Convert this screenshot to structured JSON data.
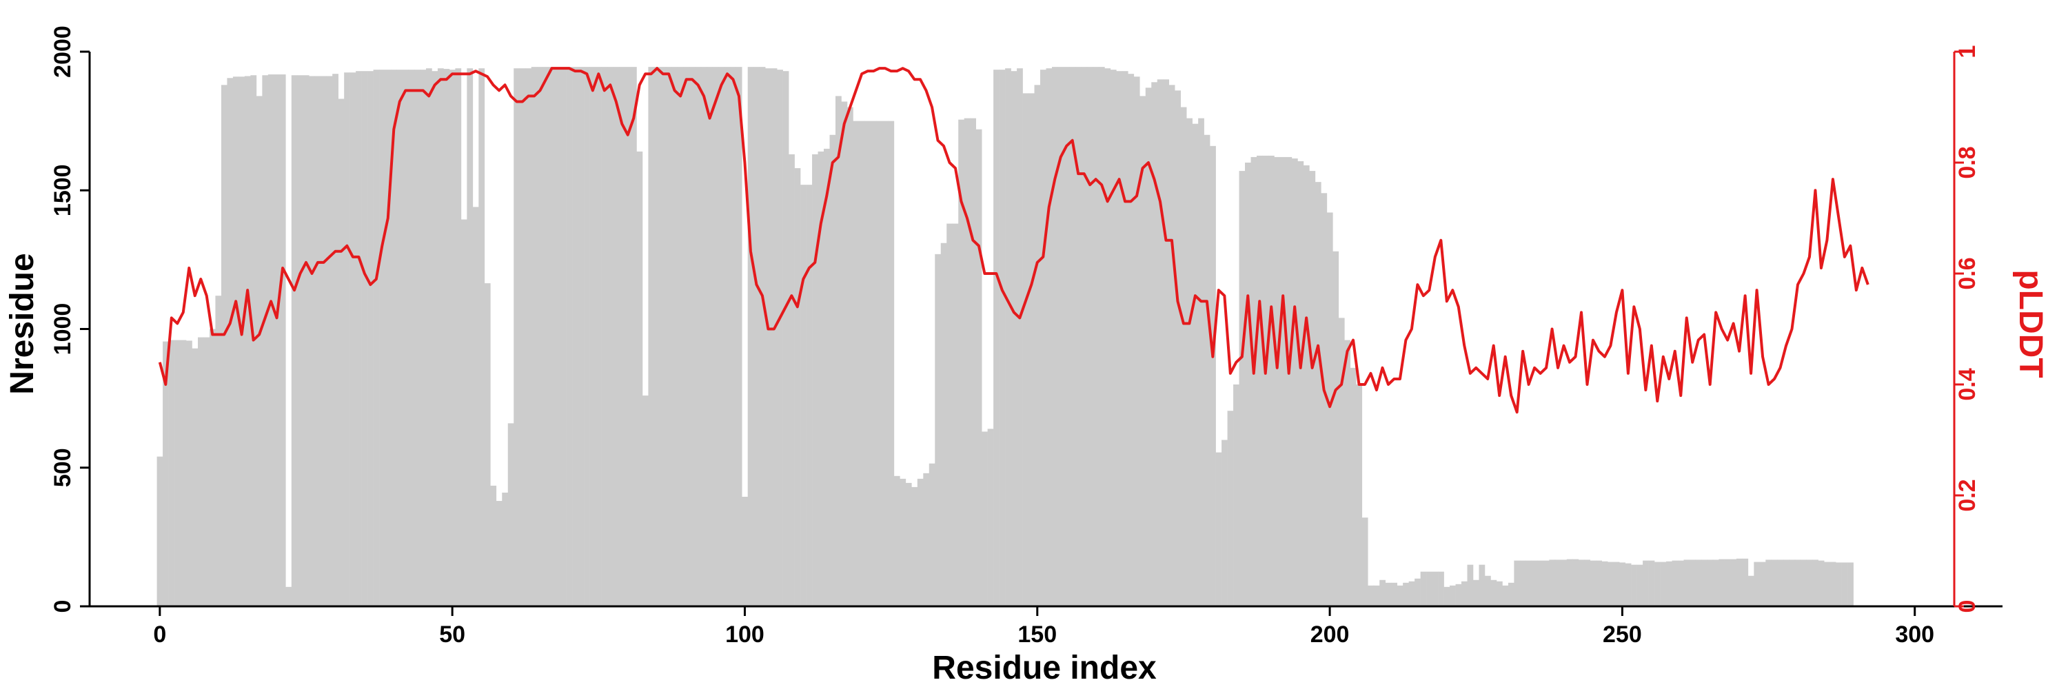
{
  "chart_data": {
    "type": "bar",
    "xlabel": "Residue index",
    "ylabel": "Nresidue",
    "y2label": "pLDDT",
    "xlim": [
      -12,
      315
    ],
    "ylim": [
      0,
      2000
    ],
    "y2lim": [
      0,
      1
    ],
    "xticks": [
      0,
      50,
      100,
      150,
      200,
      250,
      300
    ],
    "yticks": [
      0,
      500,
      1000,
      1500,
      2000
    ],
    "y2ticks": [
      0,
      0.2,
      0.4,
      0.6,
      0.8,
      1
    ],
    "grid": false,
    "colors": {
      "bars": "#cccccc",
      "line": "#e41a1c",
      "axis": "#000000"
    },
    "series": [
      {
        "kind": "bar",
        "axis": "left",
        "x_start": 0,
        "values": [
          540,
          955,
          960,
          960,
          960,
          958,
          930,
          970,
          970,
          1000,
          1120,
          1880,
          1905,
          1910,
          1910,
          1912,
          1915,
          1840,
          1915,
          1918,
          1918,
          1918,
          70,
          1915,
          1915,
          1915,
          1912,
          1912,
          1912,
          1912,
          1920,
          1830,
          1925,
          1925,
          1930,
          1930,
          1930,
          1935,
          1935,
          1935,
          1935,
          1935,
          1935,
          1935,
          1935,
          1935,
          1940,
          1930,
          1940,
          1938,
          1935,
          1940,
          1395,
          1940,
          1440,
          1940,
          1165,
          435,
          380,
          410,
          660,
          1940,
          1940,
          1940,
          1945,
          1945,
          1945,
          1945,
          1945,
          1945,
          1945,
          1945,
          1945,
          1945,
          1945,
          1945,
          1945,
          1945,
          1945,
          1945,
          1945,
          1945,
          1640,
          760,
          1945,
          1945,
          1945,
          1945,
          1945,
          1945,
          1945,
          1945,
          1945,
          1945,
          1945,
          1945,
          1945,
          1945,
          1945,
          1945,
          395,
          1945,
          1945,
          1945,
          1940,
          1940,
          1935,
          1930,
          1630,
          1580,
          1520,
          1520,
          1630,
          1640,
          1650,
          1700,
          1840,
          1820,
          1800,
          1750,
          1750,
          1750,
          1750,
          1750,
          1750,
          1750,
          470,
          460,
          445,
          430,
          460,
          480,
          515,
          1270,
          1310,
          1380,
          1380,
          1755,
          1760,
          1760,
          1720,
          630,
          640,
          1935,
          1935,
          1940,
          1930,
          1940,
          1850,
          1850,
          1880,
          1935,
          1940,
          1945,
          1945,
          1945,
          1945,
          1945,
          1945,
          1945,
          1945,
          1945,
          1940,
          1935,
          1930,
          1930,
          1920,
          1910,
          1840,
          1870,
          1890,
          1900,
          1900,
          1880,
          1860,
          1800,
          1760,
          1740,
          1760,
          1700,
          1660,
          555,
          600,
          705,
          800,
          1570,
          1600,
          1620,
          1625,
          1625,
          1625,
          1620,
          1620,
          1620,
          1615,
          1605,
          1590,
          1570,
          1530,
          1490,
          1420,
          1280,
          1040,
          960,
          860,
          800,
          320,
          75,
          75,
          95,
          85,
          85,
          75,
          85,
          90,
          100,
          125,
          125,
          125,
          125,
          70,
          75,
          80,
          90,
          150,
          95,
          150,
          110,
          95,
          90,
          75,
          85,
          165,
          165,
          165,
          165,
          165,
          165,
          168,
          168,
          168,
          170,
          170,
          168,
          168,
          165,
          165,
          162,
          160,
          160,
          158,
          155,
          150,
          150,
          165,
          165,
          160,
          160,
          162,
          165,
          165,
          168,
          168,
          168,
          168,
          168,
          168,
          170,
          170,
          170,
          172,
          172,
          110,
          160,
          160,
          168,
          168,
          168,
          168,
          168,
          168,
          168,
          168,
          168,
          165,
          160,
          160,
          158,
          158,
          158
        ]
      },
      {
        "kind": "line",
        "axis": "right",
        "x_start": 0,
        "values": [
          0.44,
          0.4,
          0.52,
          0.51,
          0.53,
          0.61,
          0.56,
          0.59,
          0.56,
          0.49,
          0.49,
          0.49,
          0.51,
          0.55,
          0.49,
          0.57,
          0.48,
          0.49,
          0.52,
          0.55,
          0.52,
          0.61,
          0.59,
          0.57,
          0.6,
          0.62,
          0.6,
          0.62,
          0.62,
          0.63,
          0.64,
          0.64,
          0.65,
          0.63,
          0.63,
          0.6,
          0.58,
          0.59,
          0.65,
          0.7,
          0.86,
          0.91,
          0.93,
          0.93,
          0.93,
          0.93,
          0.92,
          0.94,
          0.95,
          0.95,
          0.96,
          0.96,
          0.96,
          0.96,
          0.965,
          0.96,
          0.955,
          0.94,
          0.93,
          0.94,
          0.92,
          0.91,
          0.91,
          0.92,
          0.92,
          0.93,
          0.95,
          0.97,
          0.97,
          0.97,
          0.97,
          0.965,
          0.965,
          0.96,
          0.93,
          0.96,
          0.93,
          0.94,
          0.91,
          0.87,
          0.85,
          0.88,
          0.94,
          0.96,
          0.96,
          0.97,
          0.96,
          0.96,
          0.93,
          0.92,
          0.95,
          0.95,
          0.94,
          0.92,
          0.88,
          0.91,
          0.94,
          0.96,
          0.95,
          0.92,
          0.8,
          0.64,
          0.58,
          0.56,
          0.5,
          0.5,
          0.52,
          0.54,
          0.56,
          0.54,
          0.59,
          0.61,
          0.62,
          0.69,
          0.74,
          0.8,
          0.81,
          0.87,
          0.9,
          0.93,
          0.96,
          0.965,
          0.965,
          0.97,
          0.97,
          0.965,
          0.965,
          0.97,
          0.965,
          0.95,
          0.95,
          0.93,
          0.9,
          0.84,
          0.83,
          0.8,
          0.79,
          0.73,
          0.7,
          0.66,
          0.65,
          0.6,
          0.6,
          0.6,
          0.57,
          0.55,
          0.53,
          0.52,
          0.55,
          0.58,
          0.62,
          0.63,
          0.72,
          0.77,
          0.81,
          0.83,
          0.84,
          0.78,
          0.78,
          0.76,
          0.77,
          0.76,
          0.73,
          0.75,
          0.77,
          0.73,
          0.73,
          0.74,
          0.79,
          0.8,
          0.77,
          0.73,
          0.66,
          0.66,
          0.55,
          0.51,
          0.51,
          0.56,
          0.55,
          0.55,
          0.45,
          0.57,
          0.56,
          0.42,
          0.44,
          0.45,
          0.56,
          0.42,
          0.55,
          0.42,
          0.54,
          0.43,
          0.56,
          0.42,
          0.54,
          0.43,
          0.52,
          0.43,
          0.47,
          0.39,
          0.36,
          0.39,
          0.4,
          0.46,
          0.48,
          0.4,
          0.4,
          0.42,
          0.39,
          0.43,
          0.4,
          0.41,
          0.41,
          0.48,
          0.5,
          0.58,
          0.56,
          0.57,
          0.63,
          0.66,
          0.55,
          0.57,
          0.54,
          0.47,
          0.42,
          0.43,
          0.42,
          0.41,
          0.47,
          0.38,
          0.45,
          0.38,
          0.35,
          0.46,
          0.4,
          0.43,
          0.42,
          0.43,
          0.5,
          0.43,
          0.47,
          0.44,
          0.45,
          0.53,
          0.4,
          0.48,
          0.46,
          0.45,
          0.47,
          0.53,
          0.57,
          0.42,
          0.54,
          0.5,
          0.39,
          0.47,
          0.37,
          0.45,
          0.41,
          0.46,
          0.38,
          0.52,
          0.44,
          0.48,
          0.49,
          0.4,
          0.53,
          0.5,
          0.48,
          0.51,
          0.46,
          0.56,
          0.42,
          0.57,
          0.45,
          0.4,
          0.41,
          0.43,
          0.47,
          0.5,
          0.58,
          0.6,
          0.63,
          0.75,
          0.61,
          0.66,
          0.77,
          0.7,
          0.63,
          0.65,
          0.57,
          0.61,
          0.58
        ]
      }
    ]
  }
}
